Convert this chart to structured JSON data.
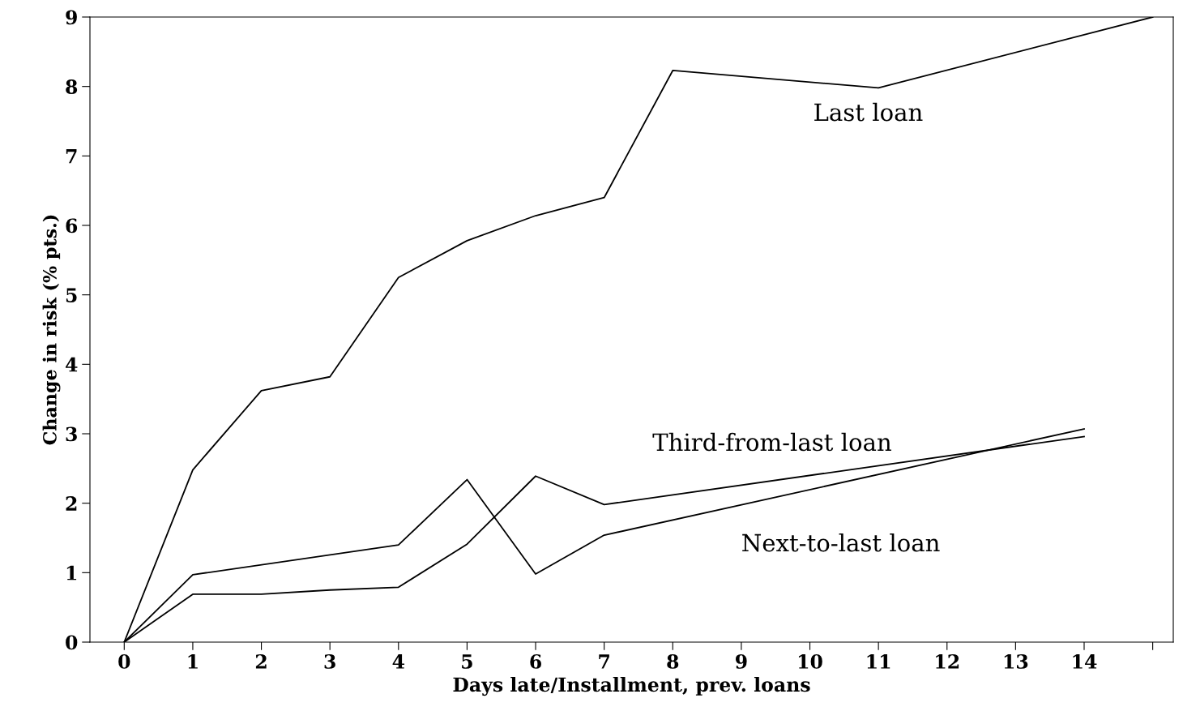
{
  "chart_data": {
    "type": "line",
    "xlabel": "Days late/Installment, prev. loans",
    "ylabel": "Change in risk (% pts.)",
    "series": [
      {
        "name": "Last loan",
        "x": [
          0,
          1,
          2,
          3,
          4,
          5,
          6,
          7,
          8,
          11,
          15
        ],
        "values": [
          0,
          2.48,
          3.62,
          3.82,
          5.25,
          5.78,
          6.14,
          6.4,
          8.23,
          7.98,
          9
        ],
        "color": "#000000"
      },
      {
        "name": "Third-from-last loan",
        "x": [
          0,
          1,
          2,
          3,
          4,
          5,
          6,
          7,
          14
        ],
        "values": [
          0,
          0.69,
          0.69,
          0.75,
          0.79,
          1.41,
          2.39,
          1.98,
          2.96
        ],
        "color": "#000000"
      },
      {
        "name": "Next-to-last loan",
        "x": [
          0,
          1,
          4,
          5,
          6,
          7,
          14
        ],
        "values": [
          0,
          0.97,
          1.4,
          2.34,
          0.98,
          1.54,
          3.07
        ],
        "color": "#000000"
      }
    ],
    "xlim": [
      -0.5,
      15.3
    ],
    "ylim": [
      0,
      9
    ],
    "xticks": [
      0,
      1,
      2,
      3,
      4,
      5,
      6,
      7,
      8,
      9,
      10,
      11,
      12,
      13,
      14,
      {
        "value": 15,
        "label": null
      }
    ],
    "yticks": [
      0,
      1,
      2,
      3,
      4,
      5,
      6,
      7,
      8,
      9
    ],
    "grid": false,
    "legend": false,
    "marker": "none",
    "line_style": "solid"
  }
}
